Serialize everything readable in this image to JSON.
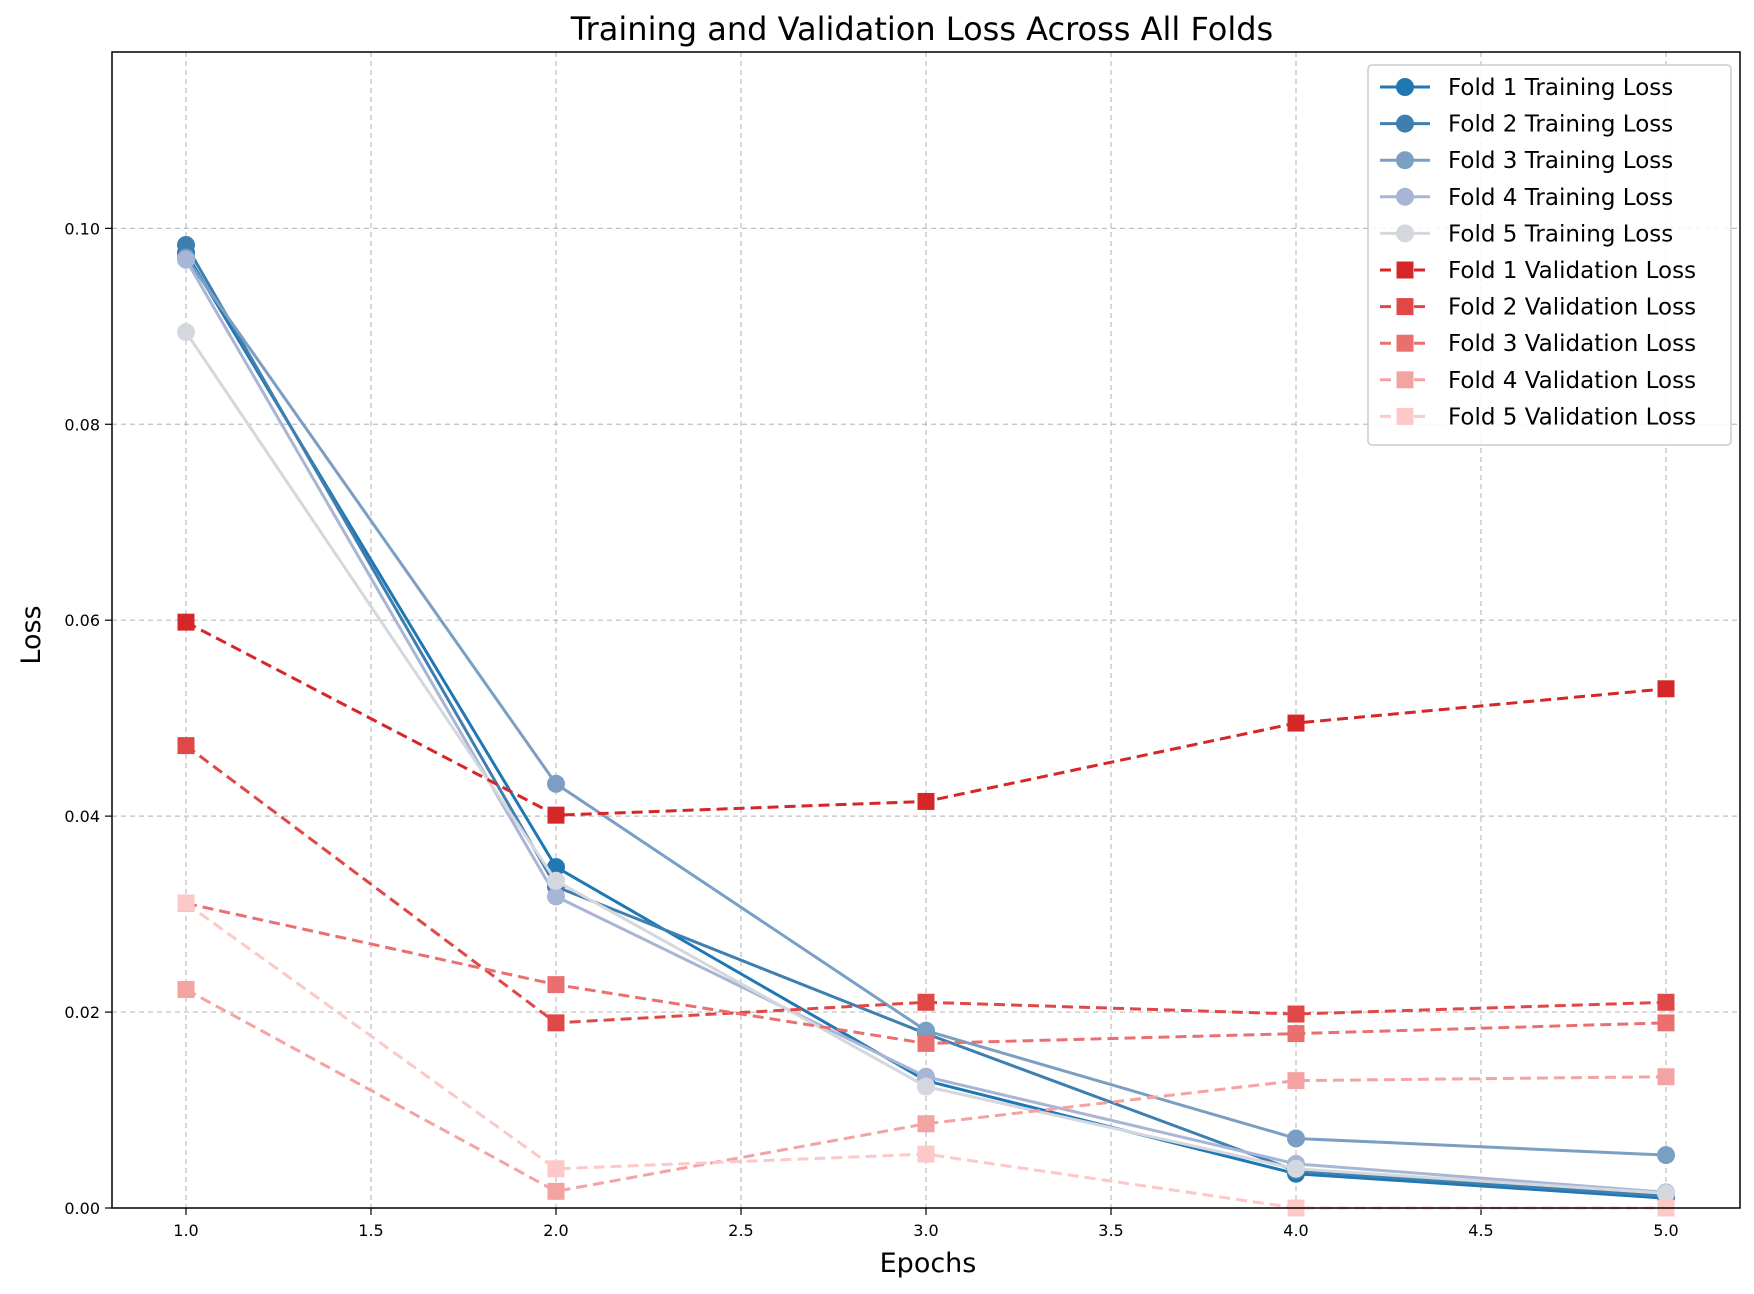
{
  "chart_data": {
    "type": "line",
    "title": "Training and Validation Loss Across All Folds",
    "xlabel": "Epochs",
    "ylabel": "Loss",
    "x": [
      1,
      2,
      3,
      4,
      5
    ],
    "xlim": [
      0.8,
      5.2
    ],
    "ylim": [
      0,
      0.118
    ],
    "xticks": [
      "1.0",
      "1.5",
      "2.0",
      "2.5",
      "3.0",
      "3.5",
      "4.0",
      "4.5",
      "5.0"
    ],
    "xtick_values": [
      1.0,
      1.5,
      2.0,
      2.5,
      3.0,
      3.5,
      4.0,
      4.5,
      5.0
    ],
    "yticks": [
      "0.00",
      "0.02",
      "0.04",
      "0.06",
      "0.08",
      "0.10"
    ],
    "ytick_values": [
      0.0,
      0.02,
      0.04,
      0.06,
      0.08,
      0.1
    ],
    "grid": true,
    "legend_position": "top-right",
    "series": [
      {
        "name": "Fold 1 Training Loss",
        "values": [
          0.0975,
          0.0348,
          0.013,
          0.0035,
          0.001
        ],
        "color": "#1f77b4",
        "style": "solid",
        "marker": "circle"
      },
      {
        "name": "Fold 2 Training Loss",
        "values": [
          0.0983,
          0.0328,
          0.0178,
          0.0038,
          0.0012
        ],
        "color": "#3f7fb0",
        "style": "solid",
        "marker": "circle"
      },
      {
        "name": "Fold 3 Training Loss",
        "values": [
          0.097,
          0.0433,
          0.0181,
          0.0071,
          0.0054
        ],
        "color": "#7a9fc2",
        "style": "solid",
        "marker": "circle"
      },
      {
        "name": "Fold 4 Training Loss",
        "values": [
          0.0968,
          0.0318,
          0.0134,
          0.0045,
          0.0016
        ],
        "color": "#a8b6d6",
        "style": "solid",
        "marker": "circle"
      },
      {
        "name": "Fold 5 Training Loss",
        "values": [
          0.0894,
          0.0334,
          0.0124,
          0.004,
          0.0015
        ],
        "color": "#d4d8de",
        "style": "solid",
        "marker": "circle"
      },
      {
        "name": "Fold 1 Validation Loss",
        "values": [
          0.0598,
          0.0401,
          0.0415,
          0.0495,
          0.053
        ],
        "color": "#d62728",
        "style": "dashed",
        "marker": "square"
      },
      {
        "name": "Fold 2 Validation Loss",
        "values": [
          0.0472,
          0.0189,
          0.021,
          0.0198,
          0.021
        ],
        "color": "#e04848",
        "style": "dashed",
        "marker": "square"
      },
      {
        "name": "Fold 3 Validation Loss",
        "values": [
          0.0311,
          0.0228,
          0.0168,
          0.0178,
          0.0189
        ],
        "color": "#ea7070",
        "style": "dashed",
        "marker": "square"
      },
      {
        "name": "Fold 4 Validation Loss",
        "values": [
          0.0223,
          0.0017,
          0.0086,
          0.013,
          0.0134
        ],
        "color": "#f4a3a3",
        "style": "dashed",
        "marker": "square"
      },
      {
        "name": "Fold 5 Validation Loss",
        "values": [
          0.0311,
          0.004,
          0.0055,
          0.0,
          0.0
        ],
        "color": "#fcc8c8",
        "style": "dashed",
        "marker": "square"
      }
    ]
  }
}
